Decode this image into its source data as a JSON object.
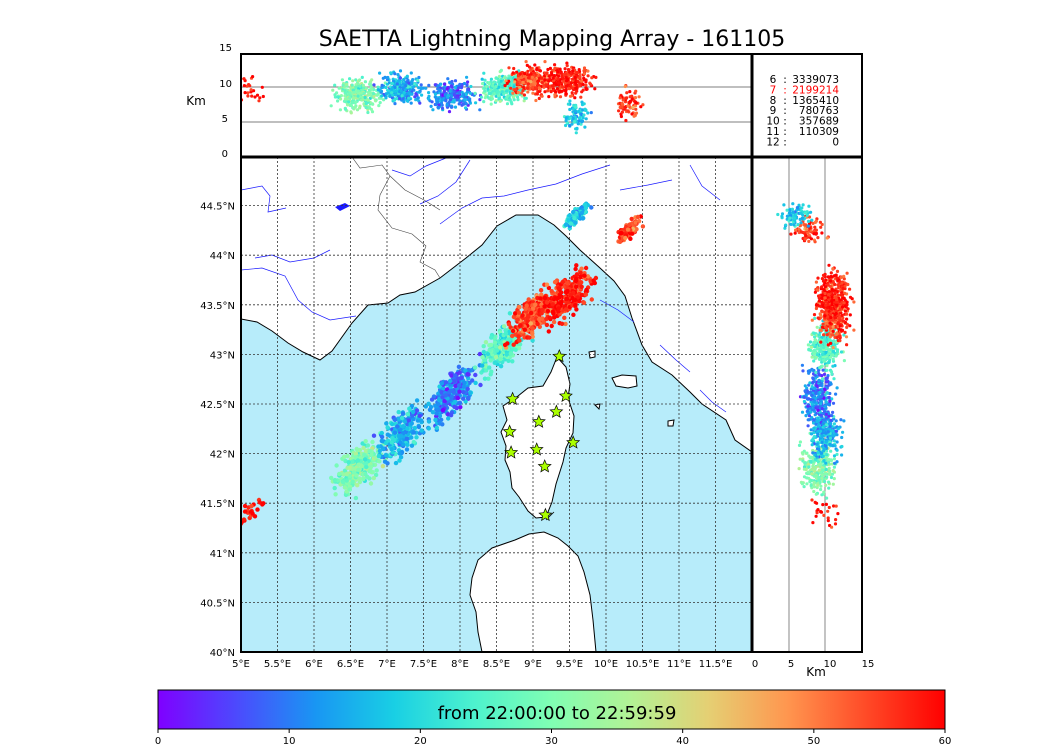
{
  "colors": {
    "sea": "#b7ecfa",
    "land": "#ffffff",
    "coast": "#000000",
    "rivers": "#1a1aff",
    "station": "#aaff00",
    "highlight": "#ff0000"
  },
  "chart_data": {
    "type": "scatter",
    "title": "SAETTA Lightning Mapping Array - 161105",
    "map": {
      "lon_range": [
        5.0,
        12.0
      ],
      "lat_range": [
        40.0,
        45.0
      ],
      "x_tick_labels": [
        "5°E",
        "5.5°E",
        "6°E",
        "6.5°E",
        "7°E",
        "7.5°E",
        "8°E",
        "8.5°E",
        "9°E",
        "9.5°E",
        "10°E",
        "10.5°E",
        "11°E",
        "11.5°E"
      ],
      "y_tick_labels": [
        "40°N",
        "40.5°N",
        "41°N",
        "41.5°N",
        "42°N",
        "42.5°N",
        "43°N",
        "43.5°N",
        "44°N",
        "44.5°N"
      ]
    },
    "alt_lon_panel": {
      "ylabel": "Km",
      "y_range": [
        0,
        15
      ],
      "y_ticks": [
        "0",
        "5",
        "10",
        "15"
      ]
    },
    "alt_lat_panel": {
      "xlabel": "Km",
      "x_range": [
        0,
        15
      ],
      "x_ticks": [
        "0",
        "5",
        "10",
        "15"
      ]
    },
    "station_counts": [
      {
        "station": "6",
        "count": "3339073",
        "highlight": false
      },
      {
        "station": "7",
        "count": "2199214",
        "highlight": true
      },
      {
        "station": "8",
        "count": "1365410",
        "highlight": false
      },
      {
        "station": "9",
        "count": "780763",
        "highlight": false
      },
      {
        "station": "10",
        "count": "357689",
        "highlight": false
      },
      {
        "station": "11",
        "count": "110309",
        "highlight": false
      },
      {
        "station": "12",
        "count": "0",
        "highlight": false
      }
    ],
    "stations": [
      {
        "lon": 9.36,
        "lat": 42.98
      },
      {
        "lon": 8.72,
        "lat": 42.55
      },
      {
        "lon": 9.45,
        "lat": 42.58
      },
      {
        "lon": 9.32,
        "lat": 42.42
      },
      {
        "lon": 9.08,
        "lat": 42.32
      },
      {
        "lon": 8.68,
        "lat": 42.22
      },
      {
        "lon": 9.55,
        "lat": 42.11
      },
      {
        "lon": 9.05,
        "lat": 42.04
      },
      {
        "lon": 8.7,
        "lat": 42.01
      },
      {
        "lon": 9.16,
        "lat": 41.87
      },
      {
        "lon": 9.17,
        "lat": 41.38
      }
    ],
    "lightning_clusters": [
      {
        "lon": 6.6,
        "lat": 41.85,
        "time_min": 30,
        "alt_km": 9
      },
      {
        "lon": 7.2,
        "lat": 42.2,
        "time_min": 15,
        "alt_km": 10
      },
      {
        "lon": 7.9,
        "lat": 42.6,
        "time_min": 10,
        "alt_km": 9
      },
      {
        "lon": 8.6,
        "lat": 43.1,
        "time_min": 25,
        "alt_km": 10
      },
      {
        "lon": 9.0,
        "lat": 43.4,
        "time_min": 55,
        "alt_km": 11
      },
      {
        "lon": 9.5,
        "lat": 43.6,
        "time_min": 58,
        "alt_km": 11
      },
      {
        "lon": 10.3,
        "lat": 44.25,
        "time_min": 55,
        "alt_km": 8
      },
      {
        "lon": 9.6,
        "lat": 44.4,
        "time_min": 18,
        "alt_km": 6
      },
      {
        "lon": 5.1,
        "lat": 41.4,
        "time_min": 58,
        "alt_km": 10
      }
    ],
    "colorbar": {
      "label": "from 22:00:00 to 22:59:59",
      "range": [
        0,
        60
      ],
      "ticks": [
        "0",
        "10",
        "20",
        "30",
        "40",
        "50",
        "60"
      ]
    }
  }
}
